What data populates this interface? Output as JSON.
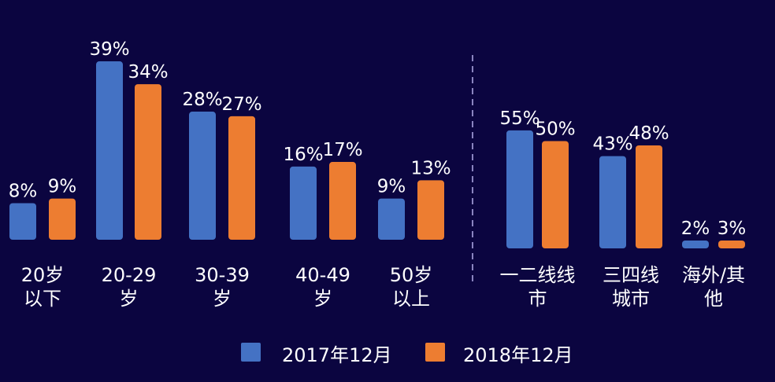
{
  "chart_data": [
    {
      "type": "bar",
      "categories": [
        [
          "20岁",
          "以下"
        ],
        [
          "20-29",
          "岁"
        ],
        [
          "30-39",
          "岁"
        ],
        [
          "40-49",
          "岁"
        ],
        [
          "50岁",
          "以上"
        ]
      ],
      "series": [
        {
          "name": "2017年12月",
          "values": [
            8,
            39,
            28,
            16,
            9
          ]
        },
        {
          "name": "2018年12月",
          "values": [
            9,
            34,
            27,
            17,
            13
          ]
        }
      ],
      "value_suffix": "%",
      "grid": false
    },
    {
      "type": "bar",
      "categories": [
        [
          "一二线线",
          "市"
        ],
        [
          "三四线",
          "城市"
        ],
        [
          "海外/其",
          "他"
        ]
      ],
      "series": [
        {
          "name": "2017年12月",
          "values": [
            55,
            43,
            2
          ]
        },
        {
          "name": "2018年12月",
          "values": [
            50,
            48,
            3
          ]
        }
      ],
      "value_suffix": "%",
      "grid": false
    }
  ],
  "legend": {
    "placement": "bottom",
    "items": [
      {
        "label": "2017年12月",
        "color": "#4472c4"
      },
      {
        "label": "2018年12月",
        "color": "#ed7d31"
      }
    ]
  },
  "colors": {
    "background": "#0b0540",
    "series1": "#4472c4",
    "series2": "#ed7d31",
    "text": "#ffffff",
    "divider": "#8a84c0"
  }
}
